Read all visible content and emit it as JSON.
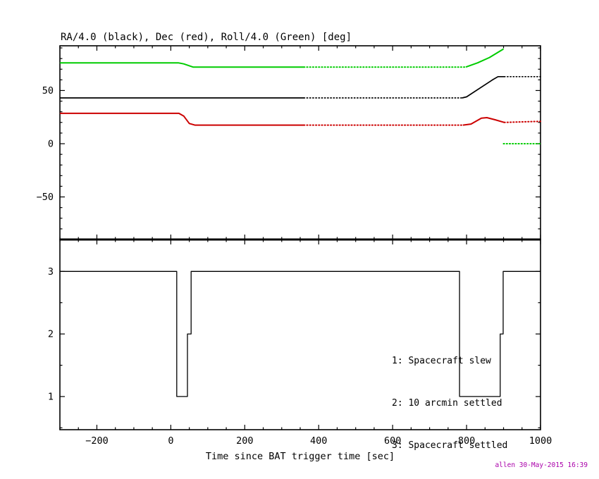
{
  "figure": {
    "title": "RA/4.0 (black), Dec (red), Roll/4.0 (Green) [deg]",
    "xlabel": "Time since BAT trigger time [sec]",
    "credit": "allen 30-May-2015 16:39",
    "colors": {
      "ra": "#000000",
      "dec": "#cc0000",
      "roll": "#00cc00",
      "axis": "#000000",
      "credit": "#aa00aa"
    }
  },
  "chart_data": [
    {
      "type": "line",
      "name": "attitude",
      "xlim": [
        -300,
        1000
      ],
      "ylim": [
        -90,
        92
      ],
      "xticks": [
        -200,
        0,
        200,
        400,
        600,
        800,
        1000
      ],
      "yticks": [
        -50,
        0,
        50
      ],
      "x_minor_step": 50,
      "y_minor_step": 10,
      "show_x_tick_labels": false,
      "series": [
        {
          "name": "roll-div4",
          "color": "#00cc00",
          "width": 2,
          "segments": [
            {
              "style": "solid",
              "points": [
                [
                  -300,
                  76
                ],
                [
                  20,
                  76
                ],
                [
                  35,
                  75
                ],
                [
                  60,
                  72
                ],
                [
                  360,
                  72
                ]
              ]
            },
            {
              "style": "dotted",
              "points": [
                [
                  360,
                  72
                ],
                [
                  798,
                  72
                ]
              ]
            },
            {
              "style": "solid",
              "points": [
                [
                  798,
                  72
                ],
                [
                  830,
                  76
                ],
                [
                  862,
                  81
                ],
                [
                  900,
                  89
                ]
              ]
            },
            {
              "style": "dotted",
              "points": [
                [
                  900,
                  0
                ],
                [
                  1000,
                  0
                ]
              ]
            }
          ]
        },
        {
          "name": "ra-div4",
          "color": "#000000",
          "width": 1.7,
          "segments": [
            {
              "style": "solid",
              "points": [
                [
                  -300,
                  43
                ],
                [
                  360,
                  43
                ]
              ]
            },
            {
              "style": "dotted",
              "points": [
                [
                  360,
                  43
                ],
                [
                  788,
                  43
                ]
              ]
            },
            {
              "style": "solid",
              "points": [
                [
                  788,
                  43
                ],
                [
                  800,
                  44
                ],
                [
                  870,
                  60
                ],
                [
                  885,
                  63
                ],
                [
                  902,
                  63
                ]
              ]
            },
            {
              "style": "dotted",
              "points": [
                [
                  902,
                  63
                ],
                [
                  1000,
                  63
                ]
              ]
            }
          ]
        },
        {
          "name": "dec",
          "color": "#cc0000",
          "width": 2,
          "segments": [
            {
              "style": "solid",
              "points": [
                [
                  -300,
                  28.5
                ],
                [
                  22,
                  28.5
                ],
                [
                  35,
                  26
                ],
                [
                  50,
                  19
                ],
                [
                  65,
                  17.5
                ],
                [
                  360,
                  17.5
                ]
              ]
            },
            {
              "style": "dotted",
              "points": [
                [
                  360,
                  17.5
                ],
                [
                  790,
                  17.5
                ]
              ]
            },
            {
              "style": "solid",
              "points": [
                [
                  790,
                  17.5
                ],
                [
                  812,
                  18.5
                ],
                [
                  840,
                  24
                ],
                [
                  855,
                  24.5
                ],
                [
                  877,
                  22.5
                ],
                [
                  902,
                  20
                ]
              ]
            },
            {
              "style": "dotted",
              "points": [
                [
                  902,
                  20
                ],
                [
                  950,
                  20.5
                ],
                [
                  1000,
                  21
                ]
              ]
            }
          ]
        }
      ]
    },
    {
      "type": "step",
      "name": "flags",
      "xlim": [
        -300,
        1000
      ],
      "ylim": [
        0.47,
        3.51
      ],
      "xticks": [
        -200,
        0,
        200,
        400,
        600,
        800,
        1000
      ],
      "yticks": [
        1,
        2,
        3
      ],
      "x_minor_step": 50,
      "y_minor_step": 0.5,
      "show_x_tick_labels": true,
      "annotations": [
        "1: Spacecraft slew",
        "2: 10 arcmin settled",
        "3: Spacecraft settled"
      ],
      "series": [
        {
          "name": "settled-flag",
          "color": "#000000",
          "width": 1.3,
          "segments": [
            {
              "style": "solid",
              "points": [
                [
                  -300,
                  3
                ],
                [
                  16,
                  3
                ],
                [
                  16,
                  1
                ],
                [
                  45,
                  1
                ],
                [
                  45,
                  2
                ],
                [
                  55,
                  2
                ],
                [
                  55,
                  3
                ],
                [
                  781,
                  3
                ],
                [
                  781,
                  1
                ],
                [
                  891,
                  1
                ],
                [
                  891,
                  2
                ],
                [
                  899,
                  2
                ],
                [
                  899,
                  3
                ],
                [
                  1000,
                  3
                ]
              ]
            }
          ]
        }
      ]
    }
  ]
}
